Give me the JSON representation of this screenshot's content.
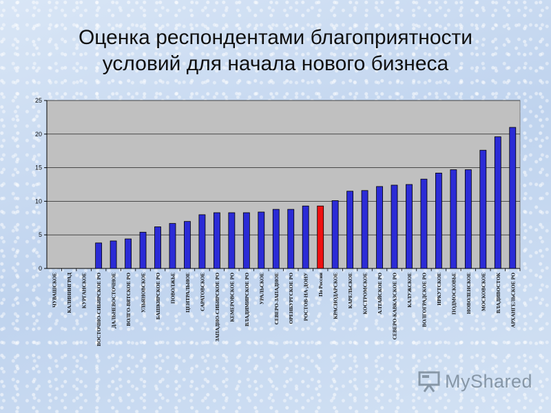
{
  "slide": {
    "title_line1": "Оценка респондентами благоприятности",
    "title_line2": "условий для начала нового бизнеса"
  },
  "watermark": {
    "text": "MyShared",
    "icon": "presentation-board-icon"
  },
  "chart_data": {
    "type": "bar",
    "categories": [
      "ЧУВАШСКОЕ",
      "КАЛИНИНГРАД",
      "КУРГАНСКОЕ",
      "ВОСТОЧНО-СИБИРСКОЕ РО",
      "ДАЛЬНЕВОСТОЧНОЕ",
      "ВОЛГО-ВЯТСКОЕ РО",
      "УЛЬЯНОВСКОЕ",
      "БАШКИРСКОЕ РО",
      "ПОВОЛЖЬЕ",
      "ЦЕНТРАЛЬНОЕ",
      "САРАТОВСКОЕ",
      "ЗАПАДНО-СИБИРСКОЕ РО",
      "КЕМЕРОВСКОЕ РО",
      "ВЛАДИМИРСКОЕ РО",
      "УРАЛЬСКОЕ",
      "СЕВЕРО-ЗАПАДНОЕ",
      "ОРЕНБУРГСКОЕ РО",
      "РОСТОВ-НА-ДОНУ",
      "По России",
      "КРАСНОДАРСКОЕ",
      "КАРЕЛЬСКОЕ",
      "КОСТРОМСКОЕ",
      "АЛТАЙСКОЕ РО",
      "СЕВЕРО-КАВКАЗСКОЕ РО",
      "КАЛУЖСКОЕ",
      "ВОЛГОГРАДСКОЕ РО",
      "ИРКУТСКОЕ",
      "ПОДМОСКОВЬЕ",
      "НОВОЛЕНСКОЕ",
      "МОСКОВСКОЕ",
      "ВЛАДИВОСТОК",
      "АРХАНГЕЛЬСКОЕ РО"
    ],
    "values": [
      0,
      0,
      0,
      3.8,
      4.1,
      4.4,
      5.4,
      6.2,
      6.7,
      7.0,
      8.0,
      8.3,
      8.3,
      8.3,
      8.4,
      8.8,
      8.8,
      9.3,
      9.3,
      10.1,
      11.5,
      11.6,
      12.2,
      12.4,
      12.5,
      13.3,
      14.2,
      14.7,
      14.7,
      17.6,
      19.6,
      21.0
    ],
    "highlight_index": 18,
    "colors": {
      "bar": "#2b2bd6",
      "highlight": "#ee1111",
      "plot_bg": "#c0c0c0",
      "bar_stroke": "#000000"
    },
    "ylim": [
      0,
      25
    ],
    "yticks": [
      0,
      5,
      10,
      15,
      20,
      25
    ],
    "grid": true,
    "legend": "none",
    "title": "",
    "xlabel": "",
    "ylabel": ""
  }
}
